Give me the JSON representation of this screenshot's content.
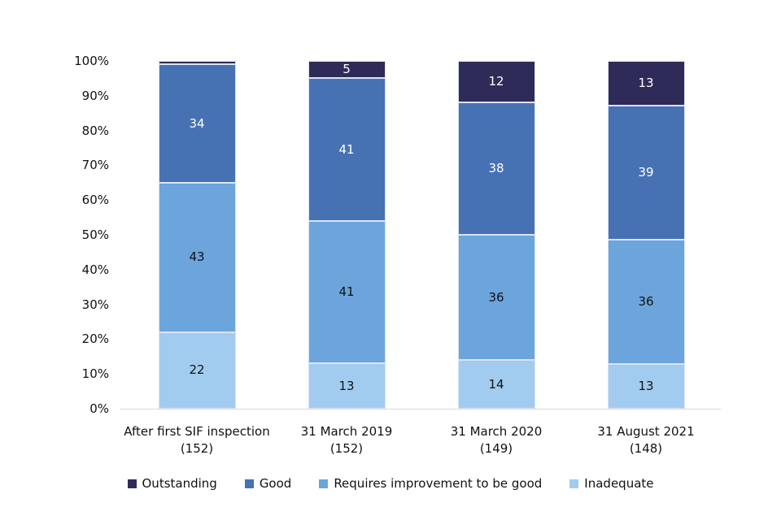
{
  "figure": {
    "background_color": "#ffffff",
    "text_color": "#111111",
    "axis_line_color": "#d9d9d9",
    "segment_outline_color": "#dbe3f3"
  },
  "chart_data": {
    "type": "bar",
    "variant": "stacked-100-percent-column",
    "title": "",
    "xlabel": "",
    "ylabel": "",
    "categories": [
      "After first SIF inspection",
      "31 March 2019",
      "31 March 2020",
      "31 August 2021"
    ],
    "category_sublabels": [
      "(152)",
      "(152)",
      "(149)",
      "(148)"
    ],
    "series": [
      {
        "name": "Outstanding",
        "color": "#2f2b59",
        "label_color": "#ffffff",
        "values": [
          1,
          5,
          12,
          13
        ],
        "data_labels": [
          "",
          "5",
          "12",
          "13"
        ]
      },
      {
        "name": "Good",
        "color": "#4672b4",
        "label_color": "#ffffff",
        "values": [
          34,
          41,
          38,
          39
        ],
        "data_labels": [
          "34",
          "41",
          "38",
          "39"
        ]
      },
      {
        "name": "Requires improvement to be good",
        "color": "#6ba5dc",
        "label_color": "#111111",
        "values": [
          43,
          41,
          36,
          36
        ],
        "data_labels": [
          "43",
          "41",
          "36",
          "36"
        ]
      },
      {
        "name": "Inadequate",
        "color": "#a2ccef",
        "label_color": "#111111",
        "values": [
          22,
          13,
          14,
          13
        ],
        "data_labels": [
          "22",
          "13",
          "14",
          "13"
        ]
      }
    ],
    "stack_order_bottom_to_top": [
      "Inadequate",
      "Requires improvement to be good",
      "Good",
      "Outstanding"
    ],
    "y_axis": {
      "min": 0,
      "max": 100,
      "tick_step": 10,
      "grid": false,
      "tick_labels": [
        "0%",
        "10%",
        "20%",
        "30%",
        "40%",
        "50%",
        "60%",
        "70%",
        "80%",
        "90%",
        "100%"
      ]
    },
    "legend": {
      "position": "bottom",
      "entries": [
        "Outstanding",
        "Good",
        "Requires improvement to be good",
        "Inadequate"
      ]
    }
  }
}
